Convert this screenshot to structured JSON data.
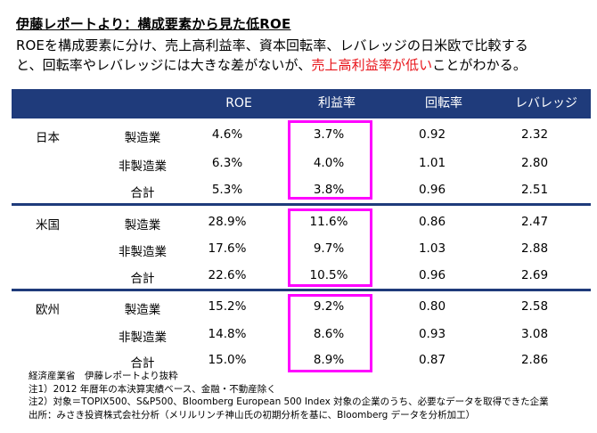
{
  "title": "伊藤レポートより：構成要素から見た低ROE",
  "lead": {
    "line1": "ROEを構成要素に分け、売上高利益率、資本回転率、レバレッジの日米欧で比較する",
    "line2_pre": "と、回転率やレバレッジには大きな差がないが、",
    "line2_red": "売上高利益率が低い",
    "line2_post": "ことがわかる。"
  },
  "table": {
    "headers": [
      "ROE",
      "利益率",
      "回転率",
      "レバレッジ"
    ],
    "groups": [
      {
        "region": "日本",
        "rows": [
          {
            "segment": "製造業",
            "roe": "4.6%",
            "margin": "3.7%",
            "turnover": "0.92",
            "leverage": "2.32"
          },
          {
            "segment": "非製造業",
            "roe": "6.3%",
            "margin": "4.0%",
            "turnover": "1.01",
            "leverage": "2.80"
          },
          {
            "segment": "合計",
            "roe": "5.3%",
            "margin": "3.8%",
            "turnover": "0.96",
            "leverage": "2.51"
          }
        ]
      },
      {
        "region": "米国",
        "rows": [
          {
            "segment": "製造業",
            "roe": "28.9%",
            "margin": "11.6%",
            "turnover": "0.86",
            "leverage": "2.47"
          },
          {
            "segment": "非製造業",
            "roe": "17.6%",
            "margin": "9.7%",
            "turnover": "1.03",
            "leverage": "2.88"
          },
          {
            "segment": "合計",
            "roe": "22.6%",
            "margin": "10.5%",
            "turnover": "0.96",
            "leverage": "2.69"
          }
        ]
      },
      {
        "region": "欧州",
        "rows": [
          {
            "segment": "製造業",
            "roe": "15.2%",
            "margin": "9.2%",
            "turnover": "0.80",
            "leverage": "2.58"
          },
          {
            "segment": "非製造業",
            "roe": "14.8%",
            "margin": "8.6%",
            "turnover": "0.93",
            "leverage": "3.08"
          },
          {
            "segment": "合計",
            "roe": "15.0%",
            "margin": "8.9%",
            "turnover": "0.87",
            "leverage": "2.86"
          }
        ]
      }
    ]
  },
  "notes": [
    "経済産業省　伊藤レポートより抜粋",
    "注1）2012 年暦年の本決算実績ベース、金融・不動産除く",
    "注2）対象＝TOPIX500、S&P500、Bloomberg European 500 Index 対象の企業のうち、必要なデータを取得できた企業",
    "出所：みさき投資株式会社分析（メリルリンチ神山氏の初期分析を基に、Bloomberg データを分析加工）"
  ],
  "colors": {
    "header_bg": "#1f3b7b",
    "highlight_border": "#ff00ff",
    "emphasis_text": "#e8141a"
  }
}
